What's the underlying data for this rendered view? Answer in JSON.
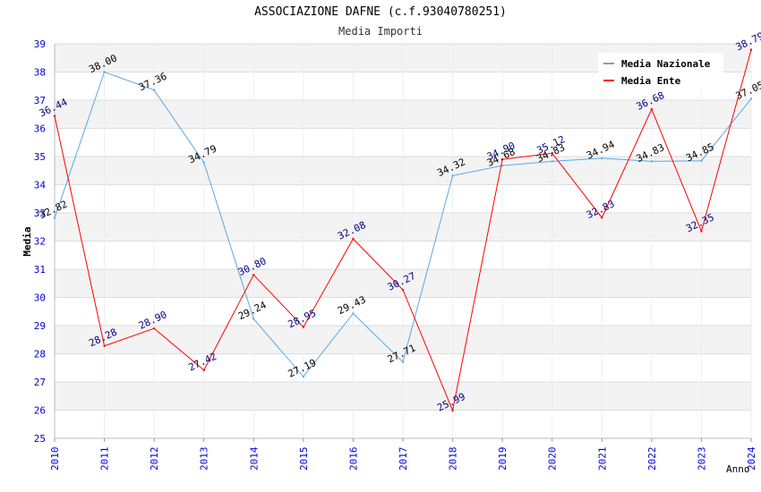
{
  "chart_data": {
    "type": "line",
    "title": "ASSOCIAZIONE DAFNE (c.f.93040780251)",
    "subtitle": "Media Importi",
    "xlabel": "Anno",
    "ylabel": "Media",
    "ylim": [
      25,
      39
    ],
    "yticks": [
      25,
      26,
      27,
      28,
      29,
      30,
      31,
      32,
      33,
      34,
      35,
      36,
      37,
      38,
      39
    ],
    "grid": "horizontal bands",
    "legend_position": "top-right",
    "x": [
      "2010",
      "2011",
      "2012",
      "2013",
      "2014",
      "2015",
      "2016",
      "2017",
      "2018",
      "2019",
      "2020",
      "2021",
      "2022",
      "2023",
      "2024"
    ],
    "series": [
      {
        "name": "Media Nazionale",
        "color": "#5aa9e6",
        "label_color": "#000000",
        "values": [
          32.82,
          38.0,
          37.36,
          34.79,
          29.24,
          27.19,
          29.43,
          27.71,
          34.32,
          34.68,
          34.83,
          34.94,
          34.83,
          34.85,
          37.05
        ],
        "labels": [
          "32.82",
          "38.00",
          "37.36",
          "34.79",
          "29.24",
          "27.19",
          "29.43",
          "27.71",
          "34.32",
          "34.68",
          "34.83",
          "34.94",
          "34.83",
          "34.85",
          "37.05"
        ]
      },
      {
        "name": "Media Ente",
        "color": "#ff0000",
        "label_color": "#000080",
        "values": [
          36.44,
          28.28,
          28.9,
          27.42,
          30.8,
          28.95,
          32.08,
          30.27,
          25.99,
          34.9,
          35.12,
          32.83,
          36.68,
          32.35,
          38.79
        ],
        "labels": [
          "36.44",
          "28.28",
          "28.90",
          "27.42",
          "30.80",
          "28.95",
          "32.08",
          "30.27",
          "25.99",
          "34.90",
          "35.12",
          "32.83",
          "36.68",
          "32.35",
          "38.79"
        ]
      }
    ]
  }
}
